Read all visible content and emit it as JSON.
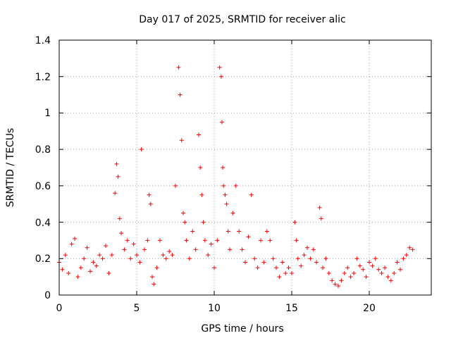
{
  "chart_data": {
    "type": "scatter",
    "title": "Day 017 of 2025, SRMTID for receiver alic",
    "xlabel": "GPS time / hours",
    "ylabel": "SRMTID / TECUs",
    "xlim": [
      0,
      24
    ],
    "ylim": [
      0,
      1.4
    ],
    "xticks": [
      0,
      5,
      10,
      15,
      20
    ],
    "xtick_labels": [
      "0",
      "5",
      "10",
      "15",
      "20"
    ],
    "yticks": [
      0,
      0.2,
      0.4,
      0.6,
      0.8,
      1.0,
      1.2,
      1.4
    ],
    "ytick_labels": [
      "0",
      "0.2",
      "0.4",
      "0.6",
      "0.8",
      "1",
      "1.2",
      "1.4"
    ],
    "grid": true,
    "marker": "+",
    "colors": {
      "series": "#ff0000",
      "grid": "#a0a0a0",
      "axis": "#000000"
    },
    "series": [
      {
        "name": "SRMTID",
        "x": [
          0.0,
          0.2,
          0.4,
          0.6,
          0.8,
          1.0,
          1.2,
          1.4,
          1.6,
          1.8,
          2.0,
          2.2,
          2.4,
          2.6,
          2.8,
          3.0,
          3.2,
          3.4,
          3.6,
          3.7,
          3.8,
          3.9,
          4.0,
          4.2,
          4.4,
          4.6,
          4.8,
          5.0,
          5.2,
          5.3,
          5.5,
          5.7,
          5.8,
          5.9,
          6.0,
          6.1,
          6.3,
          6.5,
          6.7,
          6.9,
          7.1,
          7.3,
          7.5,
          7.7,
          7.8,
          7.9,
          8.0,
          8.1,
          8.2,
          8.4,
          8.6,
          8.8,
          9.0,
          9.1,
          9.2,
          9.3,
          9.4,
          9.6,
          9.8,
          10.0,
          10.2,
          10.35,
          10.45,
          10.5,
          10.55,
          10.6,
          10.7,
          10.8,
          10.9,
          11.0,
          11.2,
          11.4,
          11.6,
          11.8,
          12.0,
          12.2,
          12.4,
          12.6,
          12.8,
          13.0,
          13.2,
          13.4,
          13.6,
          13.8,
          14.0,
          14.2,
          14.4,
          14.6,
          14.8,
          15.0,
          15.2,
          15.3,
          15.4,
          15.6,
          15.8,
          16.0,
          16.2,
          16.4,
          16.6,
          16.8,
          16.9,
          17.0,
          17.2,
          17.4,
          17.6,
          17.8,
          18.0,
          18.2,
          18.4,
          18.6,
          18.8,
          19.0,
          19.2,
          19.4,
          19.6,
          19.8,
          20.0,
          20.2,
          20.4,
          20.6,
          20.8,
          21.0,
          21.2,
          21.4,
          21.6,
          21.8,
          22.0,
          22.2,
          22.4,
          22.6,
          22.8
        ],
        "y": [
          0.18,
          0.14,
          0.22,
          0.12,
          0.28,
          0.31,
          0.1,
          0.15,
          0.2,
          0.26,
          0.13,
          0.18,
          0.16,
          0.22,
          0.2,
          0.27,
          0.12,
          0.22,
          0.56,
          0.72,
          0.65,
          0.42,
          0.34,
          0.25,
          0.3,
          0.2,
          0.28,
          0.22,
          0.18,
          0.8,
          0.25,
          0.3,
          0.55,
          0.5,
          0.1,
          0.06,
          0.15,
          0.3,
          0.22,
          0.2,
          0.24,
          0.22,
          0.6,
          1.25,
          1.1,
          0.85,
          0.45,
          0.4,
          0.3,
          0.2,
          0.35,
          0.25,
          0.88,
          0.7,
          0.55,
          0.4,
          0.3,
          0.22,
          0.28,
          0.15,
          0.3,
          1.25,
          1.2,
          0.95,
          0.7,
          0.6,
          0.55,
          0.5,
          0.35,
          0.25,
          0.45,
          0.6,
          0.35,
          0.25,
          0.18,
          0.32,
          0.55,
          0.2,
          0.15,
          0.3,
          0.18,
          0.35,
          0.3,
          0.2,
          0.15,
          0.1,
          0.18,
          0.12,
          0.15,
          0.12,
          0.4,
          0.3,
          0.2,
          0.16,
          0.22,
          0.26,
          0.2,
          0.25,
          0.18,
          0.48,
          0.42,
          0.15,
          0.2,
          0.12,
          0.08,
          0.06,
          0.05,
          0.08,
          0.12,
          0.15,
          0.1,
          0.12,
          0.2,
          0.16,
          0.14,
          0.1,
          0.18,
          0.16,
          0.2,
          0.14,
          0.12,
          0.15,
          0.1,
          0.08,
          0.12,
          0.18,
          0.14,
          0.2,
          0.22,
          0.26,
          0.25
        ]
      }
    ]
  }
}
